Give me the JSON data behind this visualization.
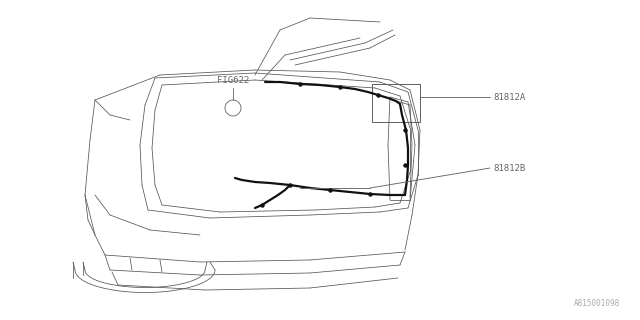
{
  "bg_color": "#ffffff",
  "line_color": "#555555",
  "label_color": "#666666",
  "thick_line_color": "#111111",
  "fig_ref": "FIG622",
  "label_a": "81812A",
  "label_b": "81812B",
  "watermark": "A815001098",
  "label_fontsize": 6.5,
  "watermark_fontsize": 5.5
}
